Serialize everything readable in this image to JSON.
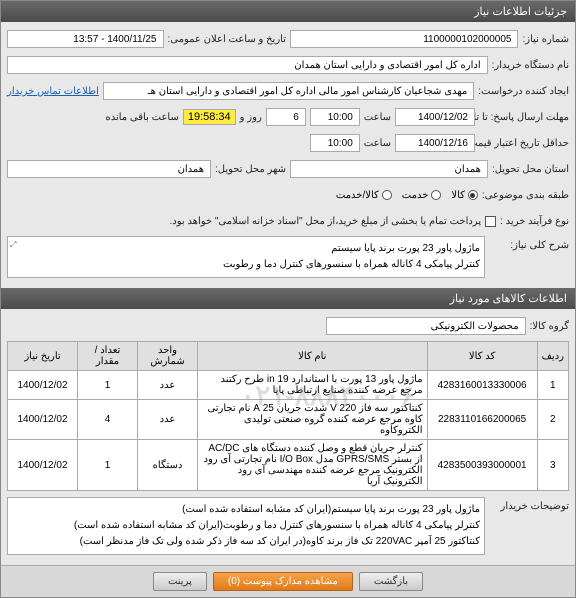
{
  "header": {
    "title": "جزئیات اطلاعات نیاز"
  },
  "info": {
    "need_no_lbl": "شماره نیاز:",
    "need_no": "1100000102000005",
    "announce_lbl": "تاریخ و ساعت اعلان عمومی:",
    "announce_val": "1400/11/25 - 13:57",
    "buyer_lbl": "نام دستگاه خریدار:",
    "buyer_val": "اداره کل امور اقتصادی و دارایی استان همدان",
    "requester_lbl": "ایجاد کننده درخواست:",
    "requester_val": "مهدی  شجاعیان کارشناس امور مالی اداره کل امور اقتصادی و دارایی استان هـ",
    "contact_link": "اطلاعات تماس خریدار",
    "deadline_lbl": "مهلت ارسال پاسخ: تا تاریخ:",
    "deadline_date": "1400/12/02",
    "time_lbl": "ساعت",
    "deadline_time": "10:00",
    "days_left": "6",
    "days_unit": "روز و",
    "remaining_time": "19:58:34",
    "remaining_lbl": "ساعت باقی مانده",
    "min_validity_lbl": "حداقل تاریخ اعتبار قیمت: تا تاریخ:",
    "min_validity_date": "1400/12/16",
    "min_validity_time": "10:00",
    "province_lbl": "استان محل تحویل:",
    "province_val": "همدان",
    "city_lbl": "شهر محل تحویل:",
    "city_val": "همدان",
    "category_lbl": "طبقه بندی موضوعی:",
    "cat_goods": "کالا",
    "cat_service": "خدمت",
    "cat_both": "کالا/خدمت",
    "buy_type_lbl": "نوع فرآیند خرید :",
    "buy_type_text": "پرداخت تمام یا بخشی از مبلغ خرید،از محل \"اسناد خزانه اسلامی\" خواهد بود.",
    "desc_lbl": "شرح کلی نیاز:",
    "desc_line1": "ماژول پاور 23 پورت برند پایا سیستم",
    "desc_line2": "کنترلر پیامکی 4 کاناله همراه با سنسورهای کنترل دما و رطوبت"
  },
  "items": {
    "header": "اطلاعات کالاهای مورد نیاز",
    "group_lbl": "گروه کالا:",
    "group_val": "محصولات الکترونیکی",
    "cols": {
      "row": "ردیف",
      "code": "کد کالا",
      "name": "نام کالا",
      "unit": "واحد شمارش",
      "qty": "تعداد / مقدار",
      "date": "تاریخ نیاز"
    },
    "rows": [
      {
        "n": "1",
        "code": "4283160013330006",
        "name": "ماژول پاور 13 پورت با استاندارد 19 in طرح رکتند مرجع عرضه کننده صنایع ارتباطی پایا",
        "unit": "عدد",
        "qty": "1",
        "date": "1400/12/02"
      },
      {
        "n": "2",
        "code": "2283110166200065",
        "name": "کنتاکتور سه فاز 220 V شدت جریان 25 A نام تجارتی کاوه مرجع عرضه کننده گروه صنعتی تولیدی الکتروکاوه",
        "unit": "عدد",
        "qty": "4",
        "date": "1400/12/02"
      },
      {
        "n": "3",
        "code": "4283500393000001",
        "name": "کنترلر جریان قطع و وصل کننده دستگاه های AC/DC از بستر GPRS/SMS مدل I/O Box نام تجارتی آی رود الکترونیک مرجع عرضه کننده مهندسی آی رود الکترونیک آریا",
        "unit": "دستگاه",
        "qty": "1",
        "date": "1400/12/02"
      }
    ],
    "notes_lbl": "توضیحات خریدار",
    "notes_l1": "ماژول پاور 23 پورت برند پایا سیستم(ایران کد مشابه استفاده شده است)",
    "notes_l2": "کنترلر پیامکی 4 کاناله همراه با سنسورهای کنترل دما و رطوبت(ایران کد مشابه استفاده شده است)",
    "notes_l3": "کنتاکتور 25 آمپر 220VAC تک فاز برند کاوه(در ایران کد سه فاز ذکر شده ولی تک فاز مدنظر است)"
  },
  "footer": {
    "print": "پرینت",
    "view": "مشاهده مدارک پیوست (0)",
    "back": "بازگشت"
  },
  "watermark": "۰۲۱-۸۸۸۴۰۰۰۶",
  "colors": {
    "highlight": "#ffeb3b",
    "link": "#1a5fb4",
    "btn_orange1": "#f5a34a",
    "btn_orange2": "#e07b1a"
  }
}
